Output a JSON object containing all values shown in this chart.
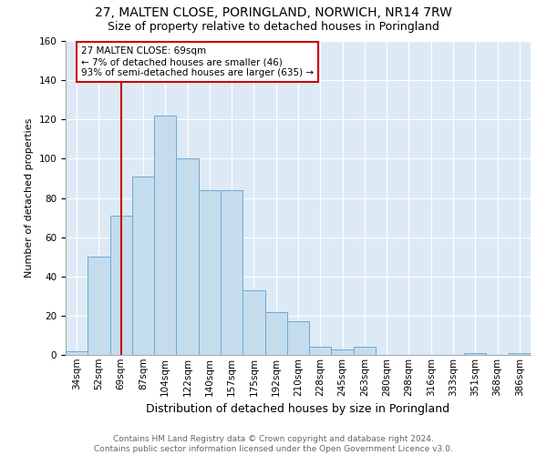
{
  "title": "27, MALTEN CLOSE, PORINGLAND, NORWICH, NR14 7RW",
  "subtitle": "Size of property relative to detached houses in Poringland",
  "xlabel": "Distribution of detached houses by size in Poringland",
  "ylabel": "Number of detached properties",
  "categories": [
    "34sqm",
    "52sqm",
    "69sqm",
    "87sqm",
    "104sqm",
    "122sqm",
    "140sqm",
    "157sqm",
    "175sqm",
    "192sqm",
    "210sqm",
    "228sqm",
    "245sqm",
    "263sqm",
    "280sqm",
    "298sqm",
    "316sqm",
    "333sqm",
    "351sqm",
    "368sqm",
    "386sqm"
  ],
  "values": [
    2,
    50,
    71,
    91,
    122,
    100,
    84,
    84,
    33,
    22,
    17,
    4,
    3,
    4,
    0,
    0,
    0,
    0,
    1,
    0,
    1
  ],
  "bar_color": "#c5dced",
  "bar_edge_color": "#6aaad4",
  "red_line_x": 2,
  "annotation_line1": "27 MALTEN CLOSE: 69sqm",
  "annotation_line2": "← 7% of detached houses are smaller (46)",
  "annotation_line3": "93% of semi-detached houses are larger (635) →",
  "annotation_box_color": "#ffffff",
  "annotation_box_edge": "#cc0000",
  "red_line_color": "#cc0000",
  "footer_text": "Contains HM Land Registry data © Crown copyright and database right 2024.\nContains public sector information licensed under the Open Government Licence v3.0.",
  "ylim": [
    0,
    160
  ],
  "yticks": [
    0,
    20,
    40,
    60,
    80,
    100,
    120,
    140,
    160
  ],
  "title_fontsize": 10,
  "subtitle_fontsize": 9,
  "xlabel_fontsize": 9,
  "ylabel_fontsize": 8,
  "tick_fontsize": 7.5,
  "annotation_fontsize": 7.5,
  "footer_fontsize": 6.5
}
